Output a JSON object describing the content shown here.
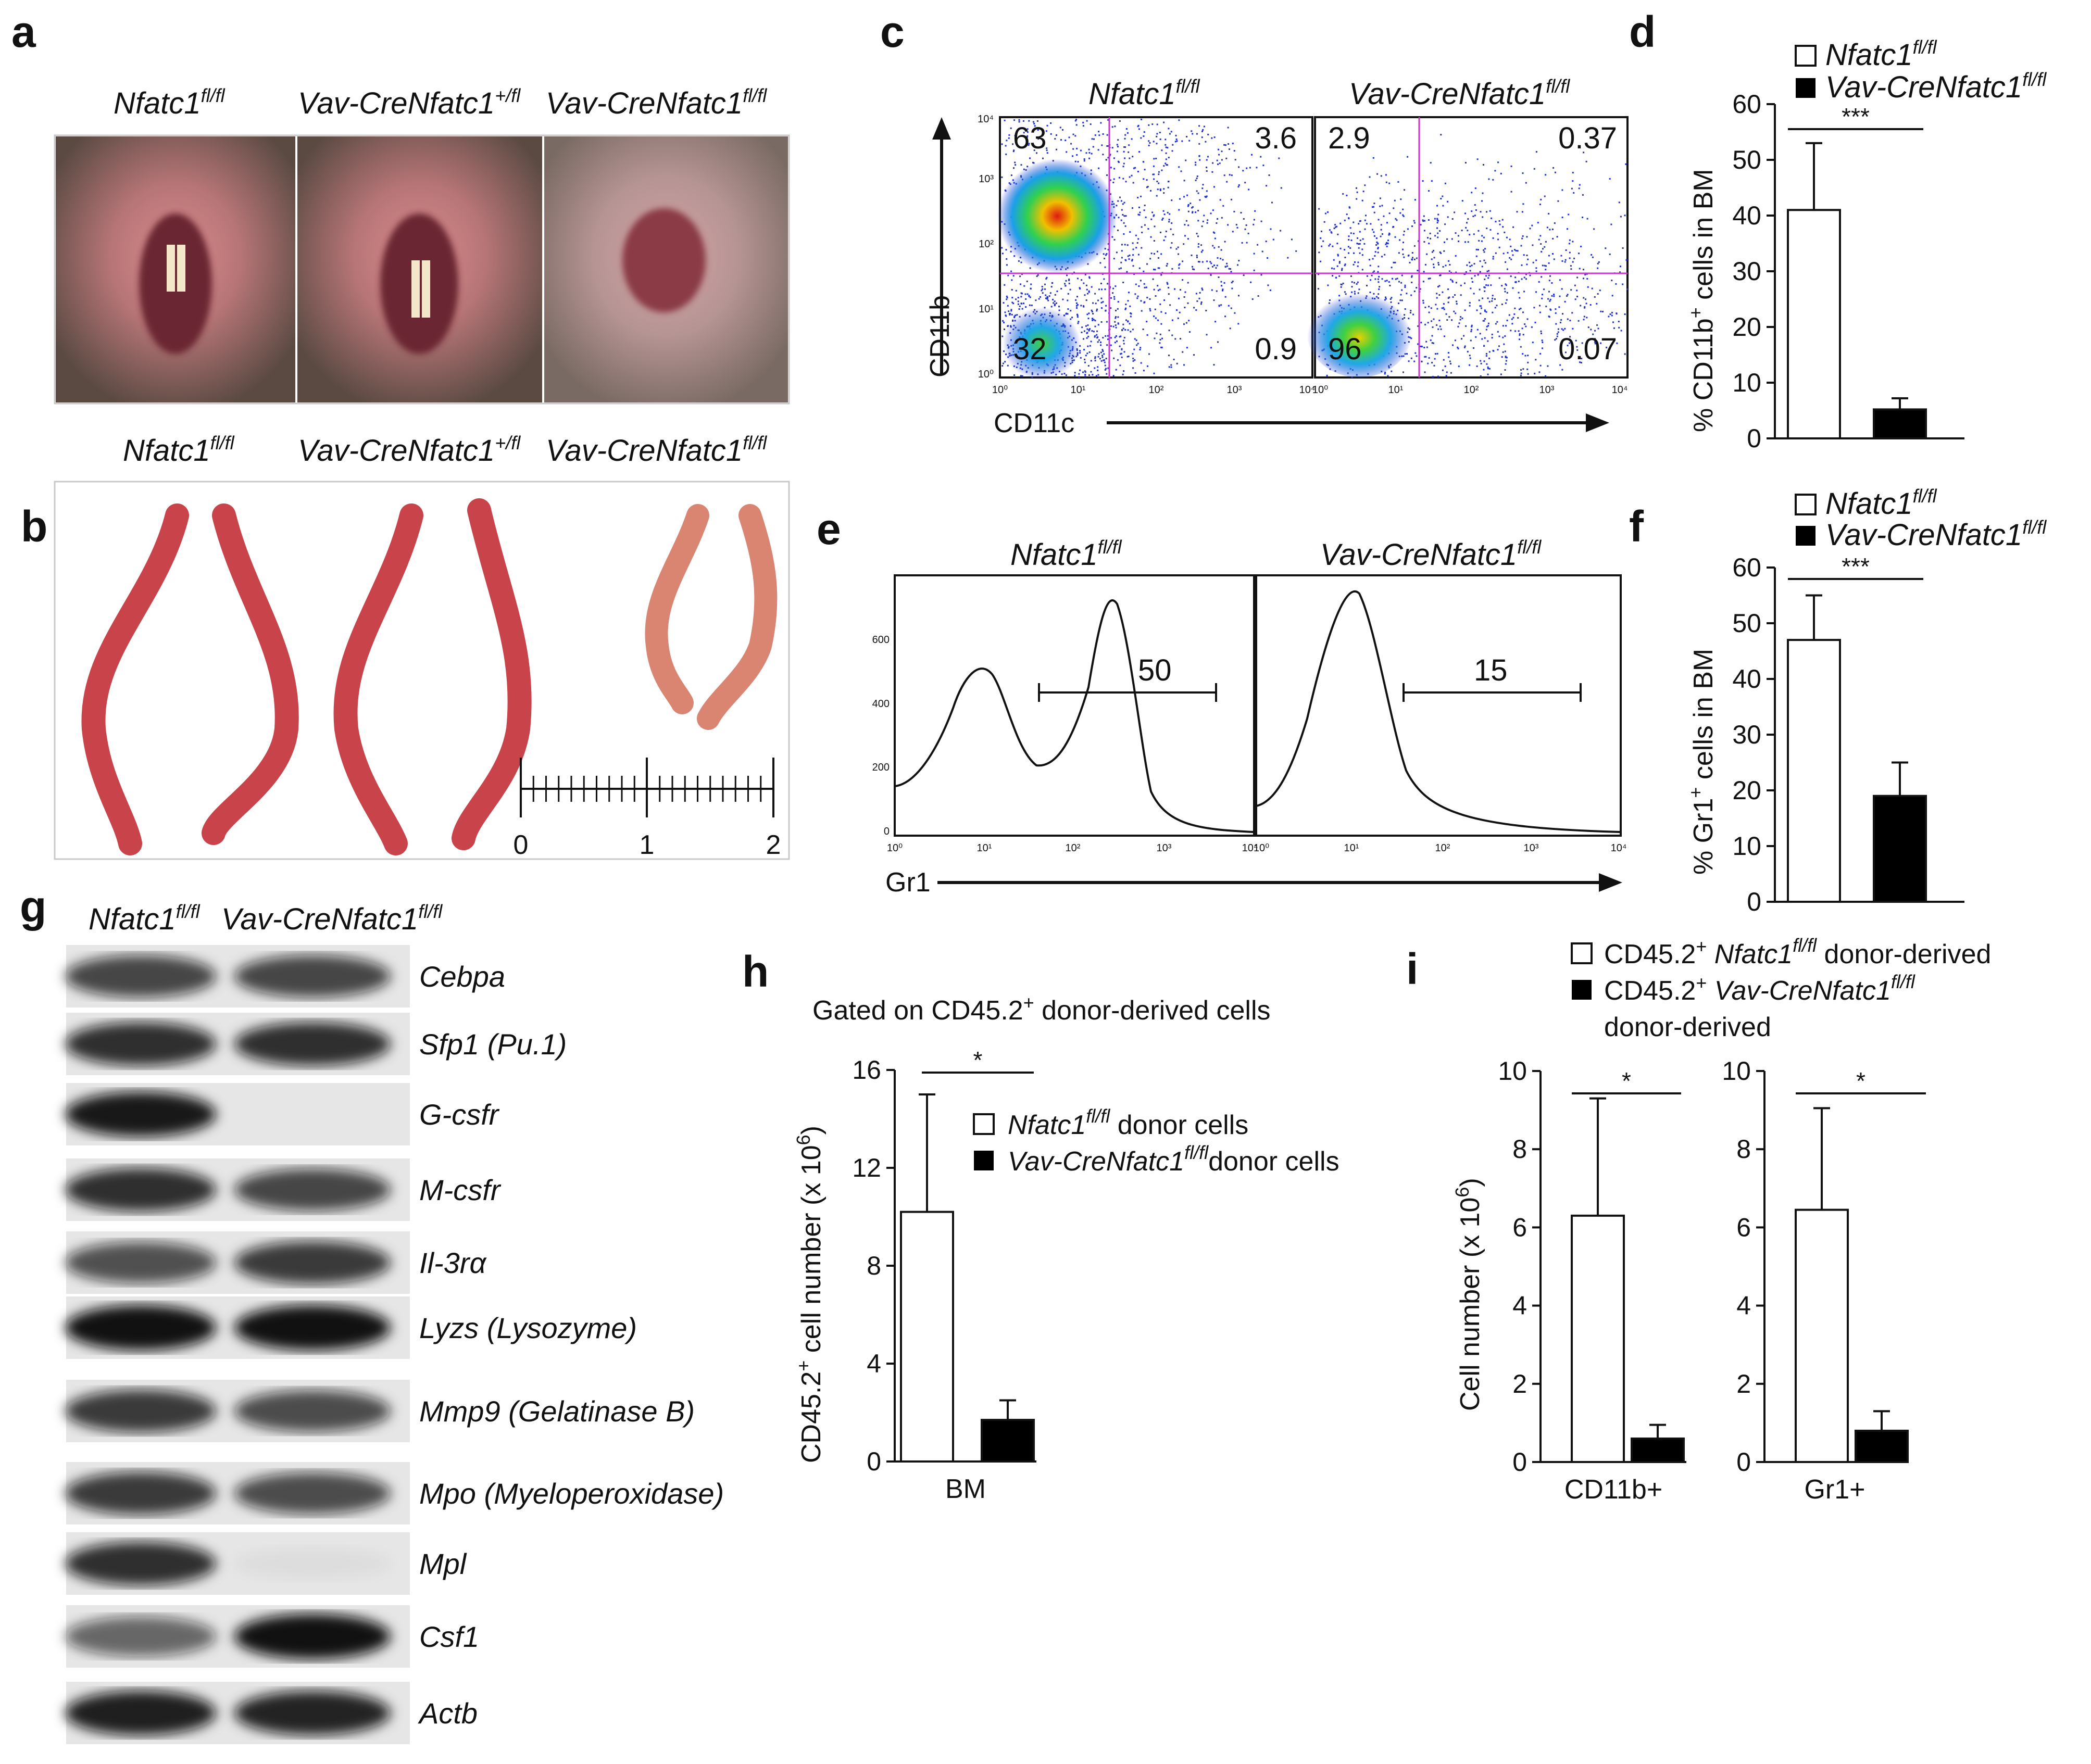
{
  "panel_letters": [
    "a",
    "b",
    "c",
    "d",
    "e",
    "f",
    "g",
    "h",
    "i"
  ],
  "genotypes": {
    "a": [
      {
        "base": "Nfatc1",
        "sup": "fl/fl",
        "pre": ""
      },
      {
        "base": "Nfatc1",
        "sup": "+/fl",
        "pre": "Vav-Cre"
      },
      {
        "base": "Nfatc1",
        "sup": "fl/fl",
        "pre": "Vav-Cre"
      }
    ],
    "b": [
      {
        "base": "Nfatc1",
        "sup": "fl/fl",
        "pre": ""
      },
      {
        "base": "Nfatc1",
        "sup": "+/fl",
        "pre": "Vav-Cre"
      },
      {
        "base": "Nfatc1",
        "sup": "fl/fl",
        "pre": "Vav-Cre"
      }
    ],
    "c": [
      {
        "base": "Nfatc1",
        "sup": "fl/fl",
        "pre": ""
      },
      {
        "base": "Nfatc1",
        "sup": "fl/fl",
        "pre": "Vav-Cre"
      }
    ],
    "e": [
      {
        "base": "Nfatc1",
        "sup": "fl/fl",
        "pre": ""
      },
      {
        "base": "Nfatc1",
        "sup": "fl/fl",
        "pre": "Vav-Cre"
      }
    ],
    "g": [
      {
        "base": "Nfatc1",
        "sup": "fl/fl",
        "pre": ""
      },
      {
        "base": "Nfatc1",
        "sup": "fl/fl",
        "pre": "Vav-Cre"
      }
    ]
  },
  "panel_b_scale": {
    "labels": [
      "0",
      "1",
      "2"
    ]
  },
  "panel_c": {
    "x_axis": "CD11c",
    "y_axis": "CD11b",
    "x_ticks": [
      "10⁰",
      "10¹",
      "10²",
      "10³",
      "10⁴"
    ],
    "y_ticks": [
      "10⁰",
      "10¹",
      "10²",
      "10³",
      "10⁴"
    ],
    "plots": [
      {
        "ul": "63",
        "ur": "3.6",
        "ll": "32",
        "lr": "0.9"
      },
      {
        "ul": "2.9",
        "ur": "0.37",
        "ll": "96",
        "lr": "0.07"
      }
    ]
  },
  "panel_e": {
    "x_axis": "Gr1",
    "y_ticks": [
      "0",
      "200",
      "400",
      "600"
    ],
    "x_ticks": [
      "10⁰",
      "10¹",
      "10²",
      "10³",
      "10⁴"
    ],
    "gates": [
      "50",
      "15"
    ]
  },
  "panel_g": {
    "genes": [
      "Cebpa",
      "Sfp1 (Pu.1)",
      "G-csfr",
      "M-csfr",
      "Il-3rα",
      "Lyzs (Lysozyme)",
      "Mmp9 (Gelatinase B)",
      "Mpo (Myeloperoxidase)",
      "Mpl",
      "Csf1",
      "Actb"
    ],
    "band_intensity_ctrl": [
      0.75,
      0.85,
      0.95,
      0.85,
      0.7,
      0.98,
      0.8,
      0.8,
      0.85,
      0.6,
      0.92
    ],
    "band_intensity_ko": [
      0.75,
      0.85,
      0.0,
      0.75,
      0.8,
      0.98,
      0.72,
      0.72,
      0.04,
      0.98,
      0.9
    ]
  },
  "panel_h": {
    "title_pre": "Gated on CD45.2",
    "title_sup": "+",
    "title_post": " donor-derived cells",
    "ylabel_pre": "CD45.2",
    "ylabel_mid": " cell number (x 10",
    "ylabel_post": ")",
    "legend_ctrl_suffix": " donor cells",
    "legend_ko_suffix": "donor cells",
    "significance": "*"
  },
  "panel_i": {
    "legend_prefix": "CD45.2",
    "legend_ctrl_suffix": " donor-derived",
    "legend_ko_line2": "donor-derived",
    "ylabel_pre": "Cell number (x 10",
    "ylabel_post": ")",
    "significance": [
      "*",
      "*"
    ]
  },
  "panel_d": {
    "ylabel_pre": "% CD11b",
    "ylabel_post": " cells in BM",
    "significance": "***"
  },
  "panel_f": {
    "ylabel_pre": "% Gr1",
    "ylabel_post": " cells in BM",
    "significance": "***"
  },
  "colors": {
    "bar_ctrl": "#ffffff",
    "bar_ko": "#000000",
    "gate_line": "#cc33cc"
  },
  "chart_data": [
    {
      "id": "d",
      "type": "bar",
      "categories": [
        "Nfatc1 fl/fl",
        "Vav-Cre Nfatc1 fl/fl"
      ],
      "values": [
        41,
        5.2
      ],
      "errors": [
        12,
        2
      ],
      "ylim": [
        0,
        60
      ],
      "yticks": [
        0,
        10,
        20,
        30,
        40,
        50,
        60
      ],
      "ylabel": "% CD11b+ cells in BM"
    },
    {
      "id": "f",
      "type": "bar",
      "categories": [
        "Nfatc1 fl/fl",
        "Vav-Cre Nfatc1 fl/fl"
      ],
      "values": [
        47,
        19
      ],
      "errors": [
        8,
        6
      ],
      "ylim": [
        0,
        60
      ],
      "yticks": [
        0,
        10,
        20,
        30,
        40,
        50,
        60
      ],
      "ylabel": "% Gr1+ cells in BM"
    },
    {
      "id": "h",
      "type": "bar",
      "categories": [
        "BM"
      ],
      "series": [
        {
          "name": "Nfatc1 fl/fl donor cells",
          "values": [
            10.2
          ],
          "errors": [
            4.8
          ]
        },
        {
          "name": "Vav-CreNfatc1 fl/fl donor cells",
          "values": [
            1.7
          ],
          "errors": [
            0.8
          ]
        }
      ],
      "ylim": [
        0,
        16
      ],
      "yticks": [
        0,
        4,
        8,
        12,
        16
      ],
      "ylabel": "CD45.2+ cell number (x 10^6)"
    },
    {
      "id": "i-CD11b",
      "type": "bar",
      "categories": [
        "CD11b+"
      ],
      "series": [
        {
          "name": "CD45.2+ Nfatc1 fl/fl donor-derived",
          "values": [
            6.3
          ],
          "errors": [
            3
          ]
        },
        {
          "name": "CD45.2+ Vav-CreNfatc1 fl/fl donor-derived",
          "values": [
            0.6
          ],
          "errors": [
            0.35
          ]
        }
      ],
      "ylim": [
        0,
        10
      ],
      "yticks": [
        0,
        2,
        4,
        6,
        8,
        10
      ],
      "ylabel": "Cell number (x 10^6)"
    },
    {
      "id": "i-Gr1",
      "type": "bar",
      "categories": [
        "Gr1+"
      ],
      "series": [
        {
          "name": "CD45.2+ Nfatc1 fl/fl donor-derived",
          "values": [
            6.45
          ],
          "errors": [
            2.6
          ]
        },
        {
          "name": "CD45.2+ Vav-CreNfatc1 fl/fl donor-derived",
          "values": [
            0.8
          ],
          "errors": [
            0.5
          ]
        }
      ],
      "ylim": [
        0,
        10
      ],
      "yticks": [
        0,
        2,
        4,
        6,
        8,
        10
      ],
      "ylabel": "Cell number (x 10^6)"
    }
  ]
}
